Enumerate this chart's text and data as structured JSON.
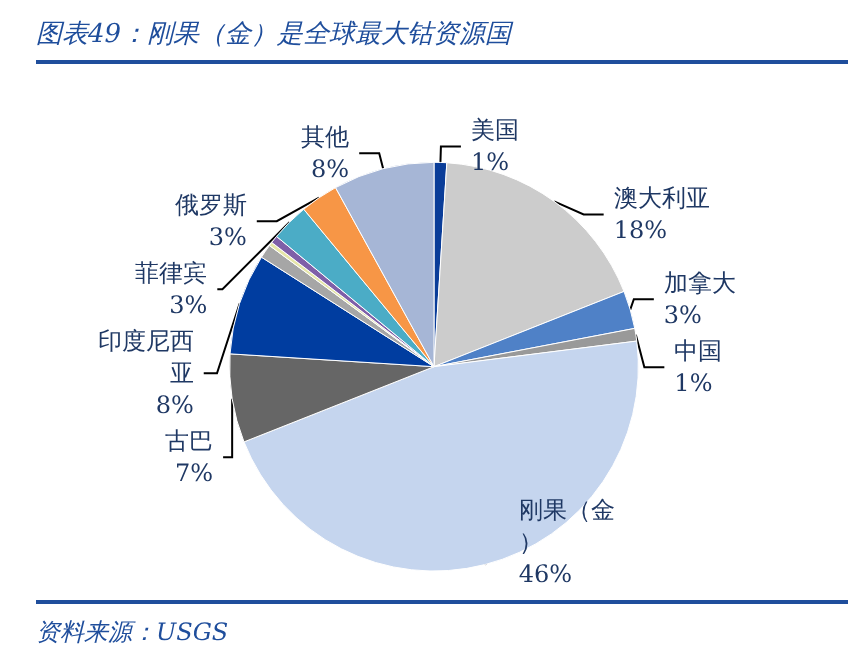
{
  "chart_data": {
    "type": "pie",
    "title": "图表49：刚果（金）是全球最大钴资源国",
    "categories": [
      "美国",
      "澳大利亚",
      "加拿大",
      "中国",
      "刚果（金）",
      "古巴",
      "印度尼西亚",
      null,
      null,
      null,
      "菲律宾",
      "俄罗斯",
      "其他"
    ],
    "values": [
      1,
      18,
      3,
      1,
      46,
      7,
      8,
      1.1,
      0.3,
      0.6,
      3,
      3,
      8
    ],
    "colors": [
      "#0a3d99",
      "#cccccc",
      "#4f81c7",
      "#999999",
      "#c5d5ee",
      "#666666",
      "#003da0",
      "#a6a6a6",
      "#e6e6a8",
      "#7f5fa8",
      "#4bacc6",
      "#f79646",
      "#a6b6d6"
    ],
    "value_labels": [
      "1%",
      "18%",
      "3%",
      "1%",
      "46%",
      "7%",
      "8%",
      null,
      null,
      null,
      "3%",
      "3%",
      "8%"
    ],
    "legend": false,
    "annotations": [
      "资料来源：USGS"
    ]
  }
}
